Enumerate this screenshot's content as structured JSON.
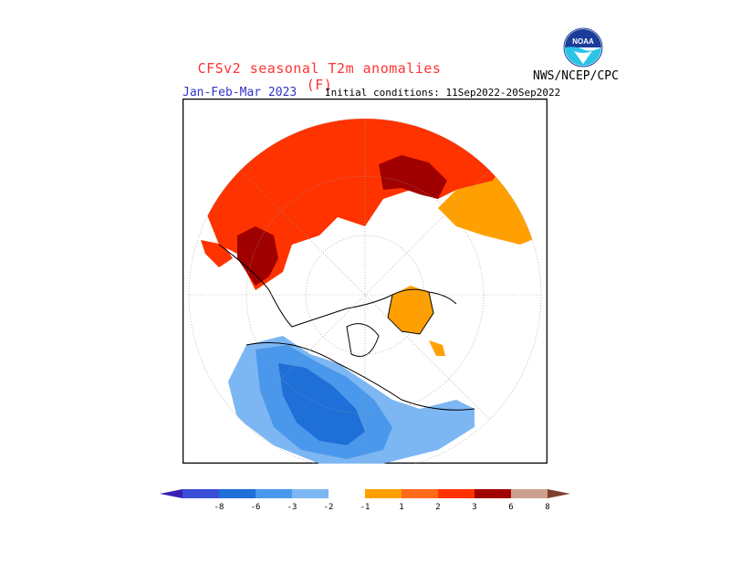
{
  "header": {
    "title": "CFSv2 seasonal T2m anomalies (F)",
    "period": "Jan-Feb-Mar 2023",
    "initial_conditions": "Initial conditions: 11Sep2022-20Sep2022",
    "agency": "NWS/NCEP/CPC",
    "logo_text": "NOAA"
  },
  "legend": {
    "tick_labels": [
      "-8",
      "-6",
      "-3",
      "-2",
      "-1",
      "1",
      "2",
      "3",
      "6",
      "8"
    ],
    "colors": [
      "#3a1fb3",
      "#3b4fd6",
      "#1f6fd9",
      "#4a98ec",
      "#7db7f3",
      "#ffffff",
      "#ffa000",
      "#ff6a1a",
      "#ff3300",
      "#a00000",
      "#cca090",
      "#804030"
    ]
  }
}
